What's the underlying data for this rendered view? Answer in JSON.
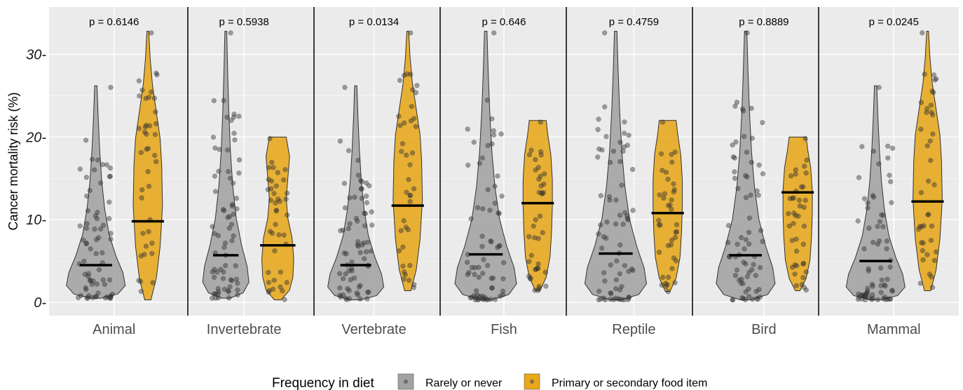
{
  "chart_data": {
    "type": "violin",
    "ylabel": "Cancer mortality risk (%)",
    "xlabel": "",
    "ylim": [
      -1.5,
      35
    ],
    "yticks": [
      0,
      10,
      20,
      30
    ],
    "ytick_labels": [
      "0-",
      "10-",
      "20-",
      "30-"
    ],
    "categories": [
      "Animal",
      "Invertebrate",
      "Vertebrate",
      "Fish",
      "Reptile",
      "Bird",
      "Mammal"
    ],
    "p_values": [
      "p = 0.6146",
      "p = 0.5938",
      "p = 0.0134",
      "p = 0.646",
      "p = 0.4759",
      "p = 0.8889",
      "p = 0.0245"
    ],
    "legend": {
      "title": "Frequency in diet",
      "position": "bottom",
      "items": [
        {
          "label": "Rarely or never",
          "color": "#999999"
        },
        {
          "label": "Primary or secondary food item",
          "color": "#E69F00"
        }
      ]
    },
    "series": [
      {
        "name": "Rarely or never",
        "color": "#999999",
        "medians": [
          4.5,
          5.7,
          4.5,
          5.8,
          5.9,
          5.7,
          5.0
        ],
        "ranges": [
          [
            0.5,
            26.2
          ],
          [
            0.5,
            32.8
          ],
          [
            0.3,
            26.2
          ],
          [
            0.3,
            32.8
          ],
          [
            0.3,
            32.8
          ],
          [
            0.3,
            32.8
          ],
          [
            0.3,
            26.2
          ]
        ]
      },
      {
        "name": "Primary or secondary food item",
        "color": "#E69F00",
        "medians": [
          9.8,
          6.9,
          11.7,
          12.0,
          10.8,
          13.3,
          12.2
        ],
        "ranges": [
          [
            0.3,
            32.8
          ],
          [
            0.3,
            20.0
          ],
          [
            1.4,
            32.8
          ],
          [
            1.4,
            22.0
          ],
          [
            1.3,
            22.0
          ],
          [
            1.4,
            20.0
          ],
          [
            1.4,
            32.8
          ]
        ]
      }
    ],
    "grid": true
  }
}
